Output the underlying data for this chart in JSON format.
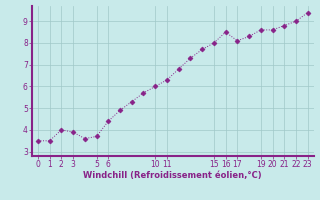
{
  "x": [
    0,
    1,
    2,
    3,
    4,
    5,
    6,
    7,
    8,
    9,
    10,
    11,
    12,
    13,
    14,
    15,
    16,
    17,
    18,
    19,
    20,
    21,
    22,
    23
  ],
  "y": [
    3.5,
    3.5,
    4.0,
    3.9,
    3.6,
    3.7,
    4.4,
    4.9,
    5.3,
    5.7,
    6.0,
    6.3,
    6.8,
    7.3,
    7.7,
    8.0,
    8.5,
    8.1,
    8.3,
    8.6,
    8.6,
    8.8,
    9.0,
    9.4
  ],
  "line_color": "#882288",
  "marker": "D",
  "marker_size": 2.5,
  "bg_color": "#c8eaea",
  "grid_color": "#a0c8c8",
  "xlabel": "Windchill (Refroidissement éolien,°C)",
  "xlabel_color": "#882288",
  "tick_color": "#882288",
  "spine_color": "#882288",
  "ylim": [
    2.8,
    9.7
  ],
  "xlim": [
    -0.5,
    23.5
  ],
  "yticks": [
    3,
    4,
    5,
    6,
    7,
    8,
    9
  ],
  "xticks": [
    0,
    1,
    2,
    3,
    5,
    6,
    10,
    11,
    15,
    16,
    17,
    19,
    20,
    21,
    22,
    23
  ],
  "xtick_labels": [
    "0",
    "1",
    "2",
    "3",
    "5",
    "6",
    "10",
    "11",
    "15",
    "16",
    "17",
    "19",
    "20",
    "21",
    "22",
    "23"
  ],
  "figsize": [
    3.2,
    2.0
  ],
  "dpi": 100
}
